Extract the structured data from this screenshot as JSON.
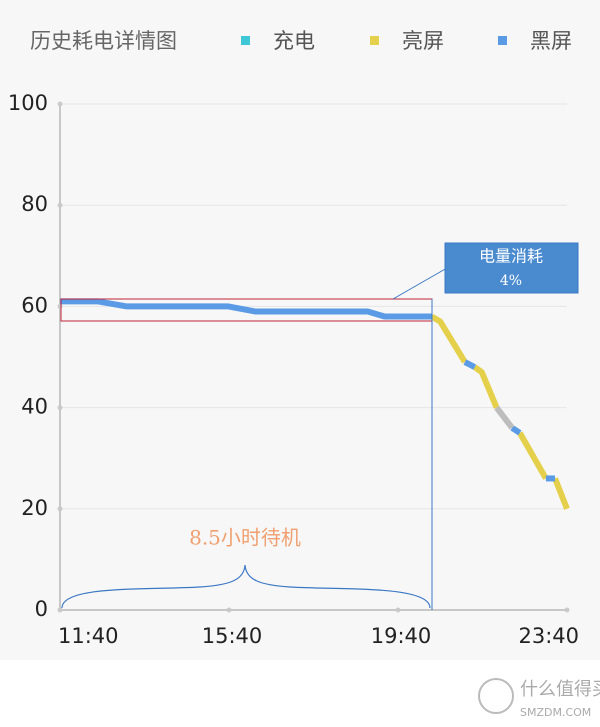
{
  "chart_data": {
    "type": "line",
    "title": "历史耗电详情图",
    "series": [
      {
        "name": "充电",
        "color": "#3ec7d6",
        "segments": []
      },
      {
        "name": "亮屏",
        "color": "#e4d04a",
        "segments": [
          {
            "x": [
              1228,
              1240,
              1275
            ],
            "values": [
              58,
              57,
              49
            ]
          },
          {
            "x": [
              1289,
              1299,
              1320
            ],
            "values": [
              48,
              47,
              40
            ]
          },
          {
            "x": [
              1353,
              1390
            ],
            "values": [
              35,
              26
            ]
          },
          {
            "x": [
              1403,
              1420
            ],
            "values": [
              26,
              20
            ]
          }
        ]
      },
      {
        "name": "黑屏",
        "color": "#5b9be6",
        "segments": [
          {
            "x": [
              700,
              753,
              795,
              939,
              977,
              1137,
              1161,
              1228
            ],
            "values": [
              61,
              61,
              60,
              60,
              59,
              59,
              58,
              58
            ]
          },
          {
            "x": [
              1275,
              1289
            ],
            "values": [
              49,
              48
            ]
          },
          {
            "x": [
              1342,
              1353
            ],
            "values": [
              36,
              35
            ]
          },
          {
            "x": [
              1390,
              1403
            ],
            "values": [
              26,
              26
            ]
          }
        ]
      },
      {
        "color": "#bdbdbd",
        "segments": [
          {
            "x": [
              1320,
              1342
            ],
            "values": [
              40,
              36
            ]
          }
        ]
      }
    ],
    "xlim": [
      700,
      1420
    ],
    "xticks": [
      {
        "value": 700,
        "label": "11:40"
      },
      {
        "value": 940,
        "label": "15:40"
      },
      {
        "value": 1180,
        "label": "19:40"
      },
      {
        "value": 1420,
        "label": "23:40"
      }
    ],
    "ylim": [
      0,
      100
    ],
    "yticks": [
      0,
      20,
      40,
      60,
      80,
      100
    ],
    "grid": true,
    "annotations": {
      "consumption_label": "电量消耗",
      "consumption_value": "4%",
      "standby": "8.5小时待机"
    }
  },
  "watermark": {
    "name": "什么值得买",
    "site": "SMZDM.COM"
  }
}
